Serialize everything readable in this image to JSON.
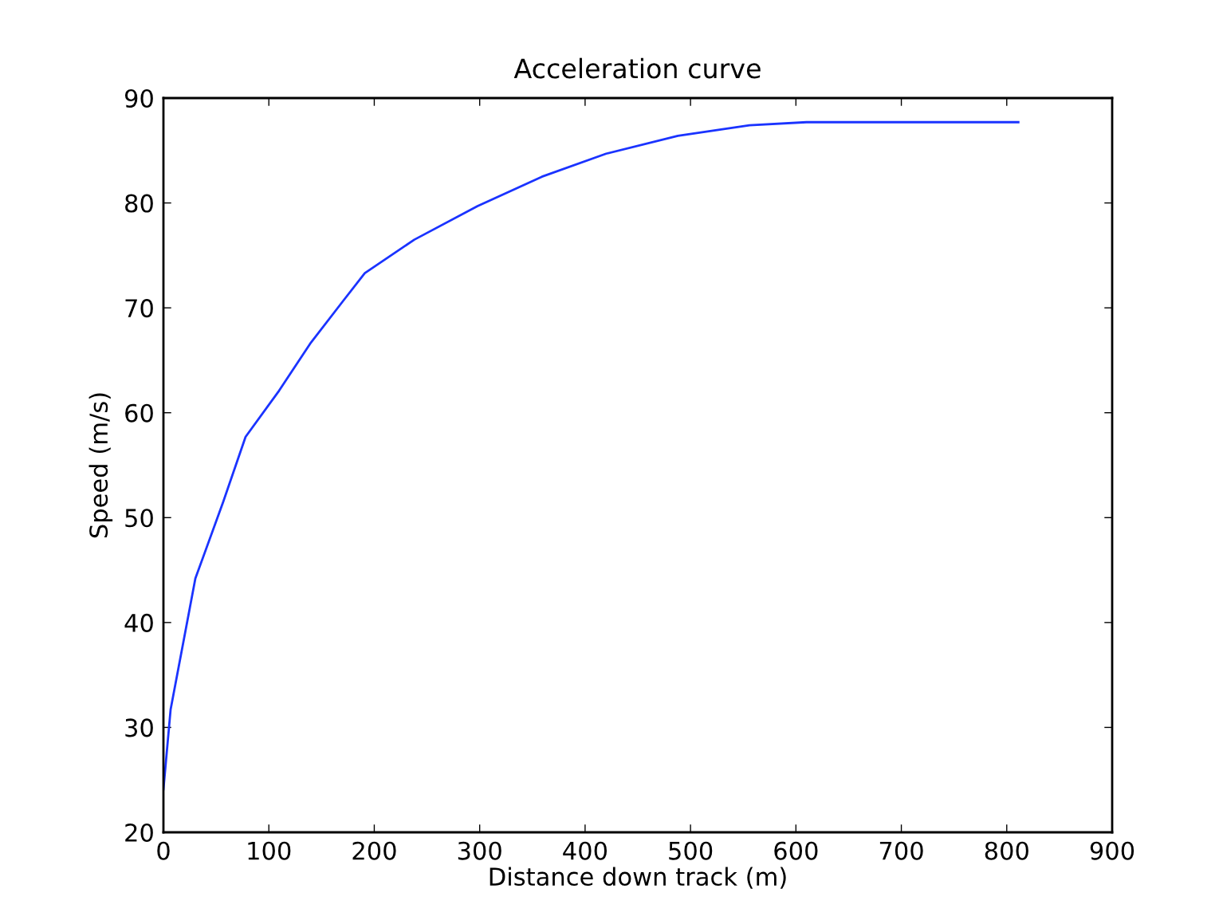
{
  "chart_data": {
    "type": "line",
    "title": "Acceleration curve",
    "xlabel": "Distance down track (m)",
    "ylabel": "Speed (m/s)",
    "series": [
      {
        "color": "#1a33ff",
        "x": [
          0,
          6.8,
          30.3,
          56.7,
          77.9,
          109.7,
          140,
          170,
          191,
          238,
          298,
          359,
          420,
          488,
          556,
          610,
          811
        ],
        "values": [
          24.1,
          31.7,
          44.2,
          51.5,
          57.7,
          62.1,
          66.7,
          70.6,
          73.3,
          76.5,
          79.7,
          82.5,
          84.7,
          86.4,
          87.4,
          87.7,
          87.7
        ]
      }
    ],
    "xlim": [
      0,
      900
    ],
    "xticks": [
      0,
      100,
      200,
      300,
      400,
      500,
      600,
      700,
      800,
      900
    ],
    "ylim": [
      20,
      90
    ],
    "yticks": [
      20,
      30,
      40,
      50,
      60,
      70,
      80,
      90
    ],
    "grid": false,
    "legend": false,
    "marker": "none",
    "line_style": "solid"
  }
}
